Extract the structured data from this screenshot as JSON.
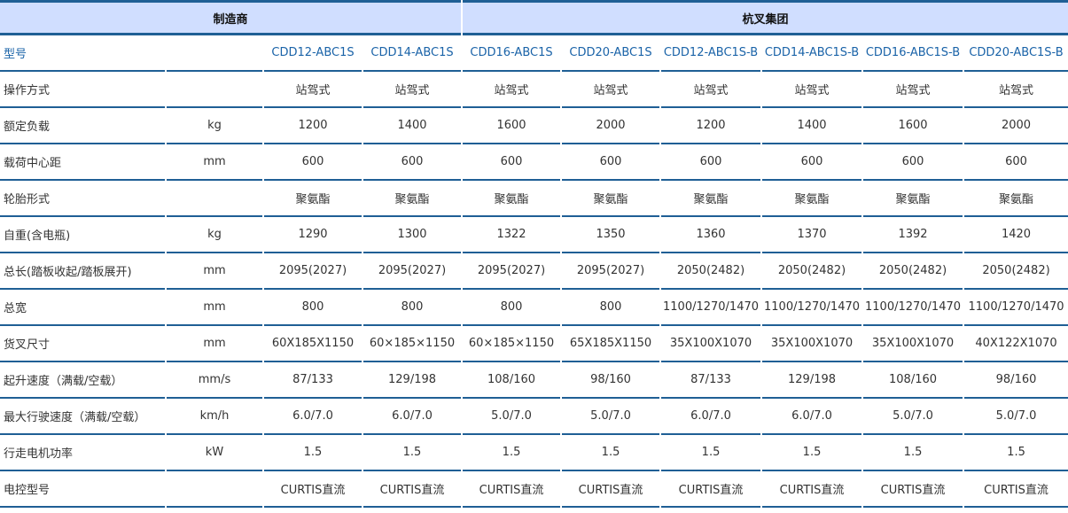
{
  "header": {
    "manufacturer_label": "制造商",
    "manufacturer": "杭叉集团"
  },
  "rows": [
    {
      "label": "型号",
      "unit": "",
      "values": [
        "CDD12-ABC1S",
        "CDD14-ABC1S",
        "CDD16-ABC1S",
        "CDD20-ABC1S",
        "CDD12-ABC1S-B",
        "CDD14-ABC1S-B",
        "CDD16-ABC1S-B",
        "CDD20-ABC1S-B"
      ]
    },
    {
      "label": "操作方式",
      "unit": "",
      "values": [
        "站驾式",
        "站驾式",
        "站驾式",
        "站驾式",
        "站驾式",
        "站驾式",
        "站驾式",
        "站驾式"
      ]
    },
    {
      "label": "额定负载",
      "unit": "kg",
      "values": [
        "1200",
        "1400",
        "1600",
        "2000",
        "1200",
        "1400",
        "1600",
        "2000"
      ]
    },
    {
      "label": "载荷中心距",
      "unit": "mm",
      "values": [
        "600",
        "600",
        "600",
        "600",
        "600",
        "600",
        "600",
        "600"
      ]
    },
    {
      "label": "轮胎形式",
      "unit": "",
      "values": [
        "聚氨酯",
        "聚氨酯",
        "聚氨酯",
        "聚氨酯",
        "聚氨酯",
        "聚氨酯",
        "聚氨酯",
        "聚氨酯"
      ]
    },
    {
      "label": "自重(含电瓶)",
      "unit": "kg",
      "values": [
        "1290",
        "1300",
        "1322",
        "1350",
        "1360",
        "1370",
        "1392",
        "1420"
      ]
    },
    {
      "label": "总长(踏板收起/踏板展开)",
      "unit": "mm",
      "values": [
        "2095(2027)",
        "2095(2027)",
        "2095(2027)",
        "2095(2027)",
        "2050(2482)",
        "2050(2482)",
        "2050(2482)",
        "2050(2482)"
      ]
    },
    {
      "label": "总宽",
      "unit": "mm",
      "values": [
        "800",
        "800",
        "800",
        "800",
        "1100/1270/1470",
        "1100/1270/1470",
        "1100/1270/1470",
        "1100/1270/1470"
      ]
    },
    {
      "label": "货叉尺寸",
      "unit": "mm",
      "values": [
        "60X185X1150",
        "60×185×1150",
        "60×185×1150",
        "65X185X1150",
        "35X100X1070",
        "35X100X1070",
        "35X100X1070",
        "40X122X1070"
      ]
    },
    {
      "label": "起升速度（满载/空载）",
      "unit": "mm/s",
      "values": [
        "87/133",
        "129/198",
        "108/160",
        "98/160",
        "87/133",
        "129/198",
        "108/160",
        "98/160"
      ]
    },
    {
      "label": "最大行驶速度（满载/空载）",
      "unit": "km/h",
      "values": [
        "6.0/7.0",
        "6.0/7.0",
        "5.0/7.0",
        "5.0/7.0",
        "6.0/7.0",
        "6.0/7.0",
        "5.0/7.0",
        "5.0/7.0"
      ]
    },
    {
      "label": "行走电机功率",
      "unit": "kW",
      "values": [
        "1.5",
        "1.5",
        "1.5",
        "1.5",
        "1.5",
        "1.5",
        "1.5",
        "1.5"
      ]
    },
    {
      "label": "电控型号",
      "unit": "",
      "values": [
        "CURTIS直流",
        "CURTIS直流",
        "CURTIS直流",
        "CURTIS直流",
        "CURTIS直流",
        "CURTIS直流",
        "CURTIS直流",
        "CURTIS直流"
      ]
    }
  ]
}
